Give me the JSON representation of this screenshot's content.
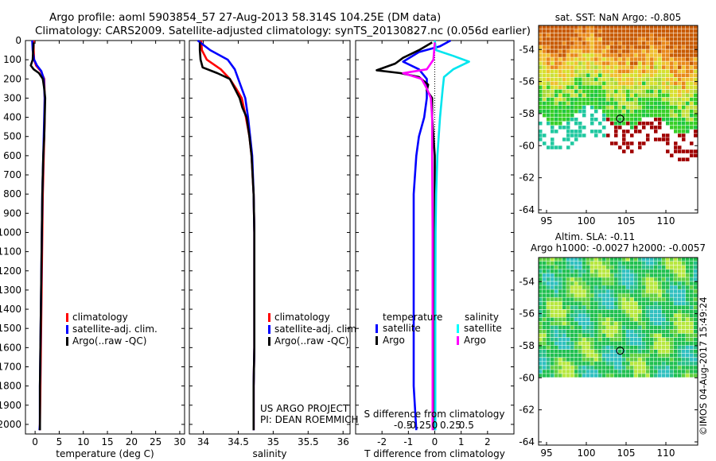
{
  "header": {
    "line1": "Argo profile: aoml 5903854_57 27-Aug-2013 58.314S 104.25E (DM data)",
    "line2": "Climatology: CARS2009. Satellite-adjusted climatology: synTS_20130827.nc (0.056d earlier)"
  },
  "credit": {
    "project": "US ARGO PROJECT",
    "pi": "PI: DEAN ROEMMICH",
    "imos": "©IMOS 04-Aug-2017 15:49:24"
  },
  "colors": {
    "climatology": "#ff0000",
    "satellite": "#0000ff",
    "argo": "#000000",
    "sal_satellite": "#00ffff",
    "sal_argo": "#ff00ff"
  },
  "chart_data": [
    {
      "id": "temperature",
      "type": "line",
      "xlabel": "temperature (deg C)",
      "ylabel": "",
      "xlim": [
        -2,
        31
      ],
      "ylim": [
        2050,
        0
      ],
      "xticks": [
        0,
        5,
        10,
        15,
        20,
        25,
        30
      ],
      "xtick_labels": [
        "0",
        "5",
        "10",
        "15",
        "20",
        "25",
        "30"
      ],
      "yticks": [
        0,
        100,
        200,
        300,
        400,
        500,
        600,
        700,
        800,
        900,
        1000,
        1100,
        1200,
        1300,
        1400,
        1500,
        1600,
        1700,
        1800,
        1900,
        2000
      ],
      "ytick_labels": [
        "0",
        "100",
        "200",
        "300",
        "400",
        "500",
        "600",
        "700",
        "800",
        "900",
        "1000",
        "1100",
        "1200",
        "1300",
        "1400",
        "1500",
        "1600",
        "1700",
        "1800",
        "1900",
        "2000"
      ],
      "legend": {
        "position": "bottom-center",
        "entries": [
          "climatology",
          "satellite-adj. clim.",
          "Argo(..raw -QC)"
        ]
      },
      "series": [
        {
          "name": "climatology",
          "color": "#ff0000",
          "x": [
            -0.3,
            -0.3,
            -0.2,
            0.2,
            1.2,
            1.9,
            2.0,
            2.0,
            1.9,
            1.8,
            1.6,
            1.5,
            1.4,
            1.3,
            1.2,
            1.1,
            1.0,
            1.0
          ],
          "y": [
            0,
            50,
            100,
            130,
            160,
            200,
            300,
            400,
            500,
            600,
            800,
            1000,
            1200,
            1400,
            1600,
            1800,
            2000,
            2030
          ]
        },
        {
          "name": "satellite-adj. clim.",
          "color": "#0000ff",
          "x": [
            -0.6,
            -0.5,
            -0.2,
            0.4,
            1.3,
            1.8,
            2.0,
            1.9,
            1.8,
            1.7,
            1.5,
            1.4,
            1.3,
            1.2,
            1.1,
            1.0,
            1.0,
            0.9
          ],
          "y": [
            0,
            50,
            100,
            130,
            160,
            200,
            300,
            400,
            500,
            600,
            800,
            1000,
            1200,
            1400,
            1600,
            1800,
            2000,
            2030
          ]
        },
        {
          "name": "Argo(..raw -QC)",
          "color": "#000000",
          "x": [
            -0.3,
            -0.4,
            -0.5,
            -0.9,
            -0.3,
            0.8,
            1.6,
            1.9,
            2.1,
            2.0,
            1.9,
            1.7,
            1.5,
            1.4,
            1.3,
            1.2,
            1.1,
            1.0,
            1.0
          ],
          "y": [
            10,
            50,
            100,
            130,
            150,
            170,
            200,
            250,
            300,
            400,
            500,
            600,
            800,
            1000,
            1200,
            1400,
            1600,
            1800,
            2030
          ]
        }
      ]
    },
    {
      "id": "salinity",
      "type": "line",
      "xlabel": "salinity",
      "ylabel": "",
      "xlim": [
        33.8,
        36.1
      ],
      "ylim": [
        2050,
        0
      ],
      "xticks": [
        34,
        34.5,
        35,
        35.5,
        36
      ],
      "xtick_labels": [
        "34",
        "34.5",
        "35",
        "35.5",
        "36"
      ],
      "legend": {
        "position": "bottom-center",
        "entries": [
          "climatology",
          "satellite-adj. clim.",
          "Argo(..raw -QC)"
        ]
      },
      "series": [
        {
          "name": "climatology",
          "color": "#ff0000",
          "x": [
            33.97,
            33.98,
            34.05,
            34.25,
            34.38,
            34.47,
            34.55,
            34.61,
            34.66,
            34.69,
            34.72,
            34.73,
            34.73,
            34.73,
            34.73,
            34.72,
            34.72,
            34.72
          ],
          "y": [
            0,
            50,
            100,
            150,
            200,
            250,
            300,
            400,
            500,
            600,
            800,
            1000,
            1200,
            1400,
            1600,
            1800,
            2000,
            2030
          ]
        },
        {
          "name": "satellite-adj. clim.",
          "color": "#0000ff",
          "x": [
            33.92,
            34.1,
            34.35,
            34.45,
            34.5,
            34.55,
            34.6,
            34.64,
            34.67,
            34.7,
            34.72,
            34.73,
            34.73,
            34.73,
            34.73,
            34.72,
            34.72,
            34.72
          ],
          "y": [
            0,
            50,
            100,
            150,
            200,
            250,
            300,
            400,
            500,
            600,
            800,
            1000,
            1200,
            1400,
            1600,
            1800,
            2000,
            2030
          ]
        },
        {
          "name": "Argo(..raw -QC)",
          "color": "#000000",
          "x": [
            33.95,
            33.95,
            33.96,
            33.99,
            34.2,
            34.38,
            34.45,
            34.52,
            34.56,
            34.62,
            34.66,
            34.69,
            34.72,
            34.73,
            34.73,
            34.73,
            34.73,
            34.72,
            34.72
          ],
          "y": [
            10,
            50,
            100,
            140,
            170,
            200,
            250,
            300,
            350,
            400,
            500,
            600,
            800,
            1000,
            1200,
            1400,
            1600,
            1800,
            2030
          ]
        }
      ]
    },
    {
      "id": "differences",
      "type": "line",
      "xlabel": "T difference from climatology",
      "xlabel_top": "S difference from climatology",
      "ylabel": "",
      "xlim": [
        -3,
        3
      ],
      "ylim": [
        2050,
        0
      ],
      "xticks": [
        -2,
        -1,
        0,
        1,
        2
      ],
      "xtick_labels": [
        "-2",
        "-1",
        "0",
        "1",
        "2"
      ],
      "s_xticks": [
        -0.5,
        -0.25,
        0,
        0.25,
        0.5
      ],
      "s_xtick_labels": [
        "-0.5",
        "-0.25",
        "0",
        "0.25",
        "0.5"
      ],
      "legend": {
        "position": "bottom",
        "temperature_title": "temperature",
        "salinity_title": "salinity",
        "entries": [
          "satellite",
          "Argo",
          "satellite",
          "Argo"
        ]
      },
      "series": [
        {
          "name": "T satellite",
          "color": "#0000ff",
          "x": [
            0.6,
            0.2,
            -0.6,
            -1.2,
            -0.6,
            -0.3,
            -0.3,
            -0.4,
            -0.6,
            -0.7,
            -0.8,
            -0.8,
            -0.8,
            -0.8,
            -0.8,
            -0.8,
            -0.7
          ],
          "y": [
            0,
            30,
            60,
            110,
            150,
            200,
            300,
            400,
            500,
            600,
            800,
            1000,
            1200,
            1400,
            1600,
            1800,
            2030
          ]
        },
        {
          "name": "T Argo",
          "color": "#000000",
          "x": [
            -0.1,
            -0.6,
            -1.2,
            -1.5,
            -2.2,
            -1.3,
            -0.6,
            -0.25,
            -0.3,
            -0.1,
            -0.1,
            0,
            0,
            0,
            0
          ],
          "y": [
            10,
            50,
            90,
            120,
            155,
            170,
            190,
            230,
            260,
            300,
            400,
            600,
            1000,
            1500,
            2030
          ]
        },
        {
          "name": "S satellite",
          "color": "#00e5ee",
          "x": [
            0,
            0.05,
            0.7,
            1.3,
            0.7,
            0.35,
            0.3,
            0.2,
            0.1,
            0.05,
            0.03,
            0.02,
            0.02,
            0.02
          ],
          "y": [
            0,
            50,
            80,
            110,
            150,
            190,
            250,
            400,
            600,
            800,
            1000,
            1400,
            1800,
            2030
          ]
        },
        {
          "name": "S Argo",
          "color": "#ff00ff",
          "x": [
            0,
            -0.05,
            -0.3,
            -1.2,
            -0.5,
            -0.3,
            -0.15,
            -0.1,
            -0.1,
            -0.08,
            -0.08,
            -0.08,
            -0.08
          ],
          "y": [
            10,
            100,
            150,
            170,
            200,
            250,
            300,
            400,
            600,
            1000,
            1400,
            1800,
            2030
          ]
        }
      ]
    },
    {
      "id": "sst_map",
      "type": "heatmap",
      "title": "sat. SST: NaN Argo: -0.805",
      "xlim": [
        94,
        114
      ],
      "ylim": [
        -64.2,
        -52.5
      ],
      "xticks": [
        95,
        100,
        105,
        110
      ],
      "xtick_labels": [
        "95",
        "100",
        "105",
        "110"
      ],
      "yticks": [
        -54,
        -56,
        -58,
        -60,
        -62,
        -64
      ],
      "ytick_labels": [
        "-54",
        "-56",
        "-58",
        "-60",
        "-62",
        "-64"
      ],
      "marker": {
        "lon": 104.25,
        "lat": -58.314
      }
    },
    {
      "id": "sla_map",
      "type": "heatmap",
      "title": "Altim. SLA: -0.11",
      "subtitle": "Argo h1000: -0.0027 h2000: -0.0057",
      "xlim": [
        94,
        114
      ],
      "ylim": [
        -64.2,
        -52.5
      ],
      "xticks": [
        95,
        100,
        105,
        110
      ],
      "xtick_labels": [
        "95",
        "100",
        "105",
        "110"
      ],
      "yticks": [
        -54,
        -56,
        -58,
        -60,
        -62,
        -64
      ],
      "ytick_labels": [
        "-54",
        "-56",
        "-58",
        "-60",
        "-62",
        "-64"
      ],
      "marker": {
        "lon": 104.25,
        "lat": -58.314
      }
    }
  ]
}
